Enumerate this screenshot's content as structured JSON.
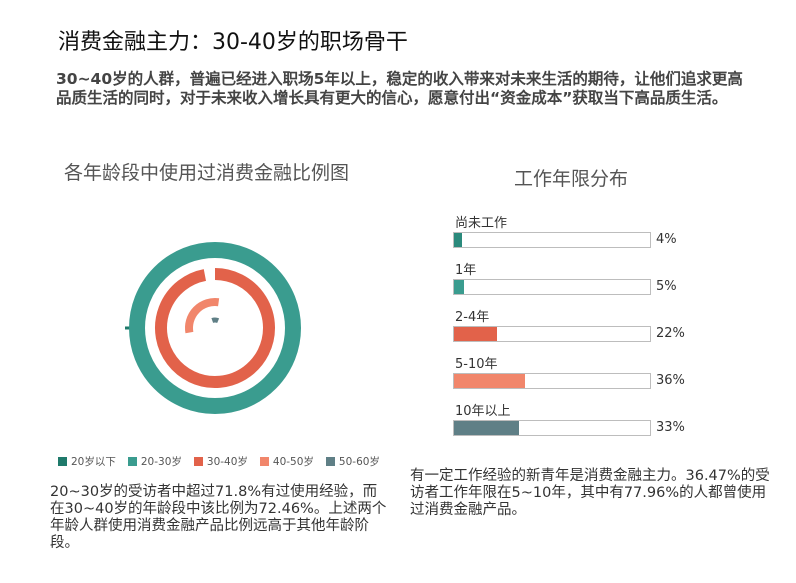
{
  "title": "消费金融主力：30-40岁的职场骨干",
  "intro": "30~40岁的人群，普遍已经进入职场5年以上，稳定的收入带来对未来生活的期待，让他们追求更高品质生活的同时，对于未来收入增长具有更大的信心，愿意付出“资金成本”获取当下高品质生活。",
  "left_note": "20~30岁的受访者中超过71.8%有过使用经验，而在30~40岁的年龄段中该比例为72.46%。上述两个年龄人群使用消费金融产品比例远高于其他年龄阶段。",
  "right_note": "有一定工作经验的新青年是消费金融主力。36.47%的受访者工作年限在5~10年，其中有77.96%的人都曾使用过消费金融产品。",
  "colors": {
    "under20": "#1f7a6b",
    "age20_30": "#3a9c8f",
    "age30_40": "#e2624a",
    "age40_50": "#f1866b",
    "age50_60": "#5f7f86",
    "work_none": "#2b8a7c",
    "work_1": "#3a9c8f",
    "work_2_4": "#e2624a",
    "work_5_10": "#f1866b",
    "work_10plus": "#5f7f86"
  },
  "chart_data": [
    {
      "type": "pie",
      "variant": "radial-donut",
      "title": "各年龄段中使用过消费金融比例图",
      "legend_position": "bottom",
      "series": [
        {
          "name": "20岁以下",
          "value": null,
          "color_key": "under20"
        },
        {
          "name": "20-30岁",
          "value": 71.8,
          "color_key": "age20_30"
        },
        {
          "name": "30-40岁",
          "value": 72.46,
          "color_key": "age30_40"
        },
        {
          "name": "40-50岁",
          "value": 30,
          "color_key": "age40_50"
        },
        {
          "name": "50-60岁",
          "value": 12,
          "color_key": "age50_60"
        }
      ]
    },
    {
      "type": "bar",
      "orientation": "horizontal",
      "title": "工作年限分布",
      "categories": [
        "尚未工作",
        "1年",
        "2-4年",
        "5-10年",
        "10年以上"
      ],
      "values": [
        4,
        5,
        22,
        36,
        33
      ],
      "labels": [
        "4%",
        "5%",
        "22%",
        "36%",
        "33%"
      ],
      "color_keys": [
        "work_none",
        "work_1",
        "work_2_4",
        "work_5_10",
        "work_10plus"
      ],
      "xlim": [
        0,
        100
      ]
    }
  ]
}
